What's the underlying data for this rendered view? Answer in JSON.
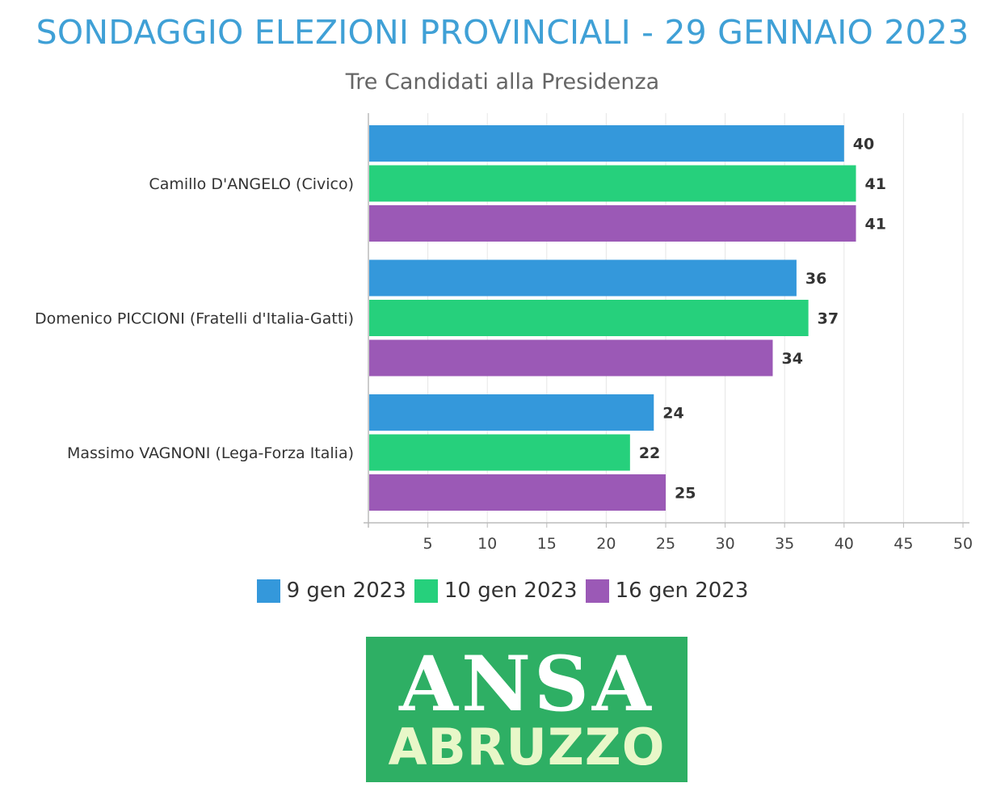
{
  "header": {
    "title": "SONDAGGIO ELEZIONI PROVINCIALI - 29 GENNAIO 2023",
    "subtitle": "Tre Candidati alla Presidenza"
  },
  "chart_data": {
    "type": "bar",
    "orientation": "horizontal",
    "title": "SONDAGGIO ELEZIONI PROVINCIALI - 29 GENNAIO 2023",
    "subtitle": "Tre Candidati alla Presidenza",
    "categories": [
      "Camillo D'ANGELO (Civico)",
      "Domenico PICCIONI (Fratelli d'Italia-Gatti)",
      "Massimo VAGNONI (Lega-Forza Italia)"
    ],
    "series": [
      {
        "name": "9 gen 2023",
        "color": "#3498db",
        "values": [
          40,
          36,
          24
        ]
      },
      {
        "name": "10 gen 2023",
        "color": "#26d07c",
        "values": [
          41,
          37,
          22
        ]
      },
      {
        "name": "16 gen 2023",
        "color": "#9b59b6",
        "values": [
          41,
          34,
          25
        ]
      }
    ],
    "xlim": [
      0,
      50
    ],
    "ticks": [
      5,
      10,
      15,
      20,
      25,
      30,
      35,
      40,
      45,
      50
    ],
    "grid": true,
    "legend_position": "bottom"
  },
  "logo": {
    "top": "ANSA",
    "bottom": "ABRUZZO"
  }
}
